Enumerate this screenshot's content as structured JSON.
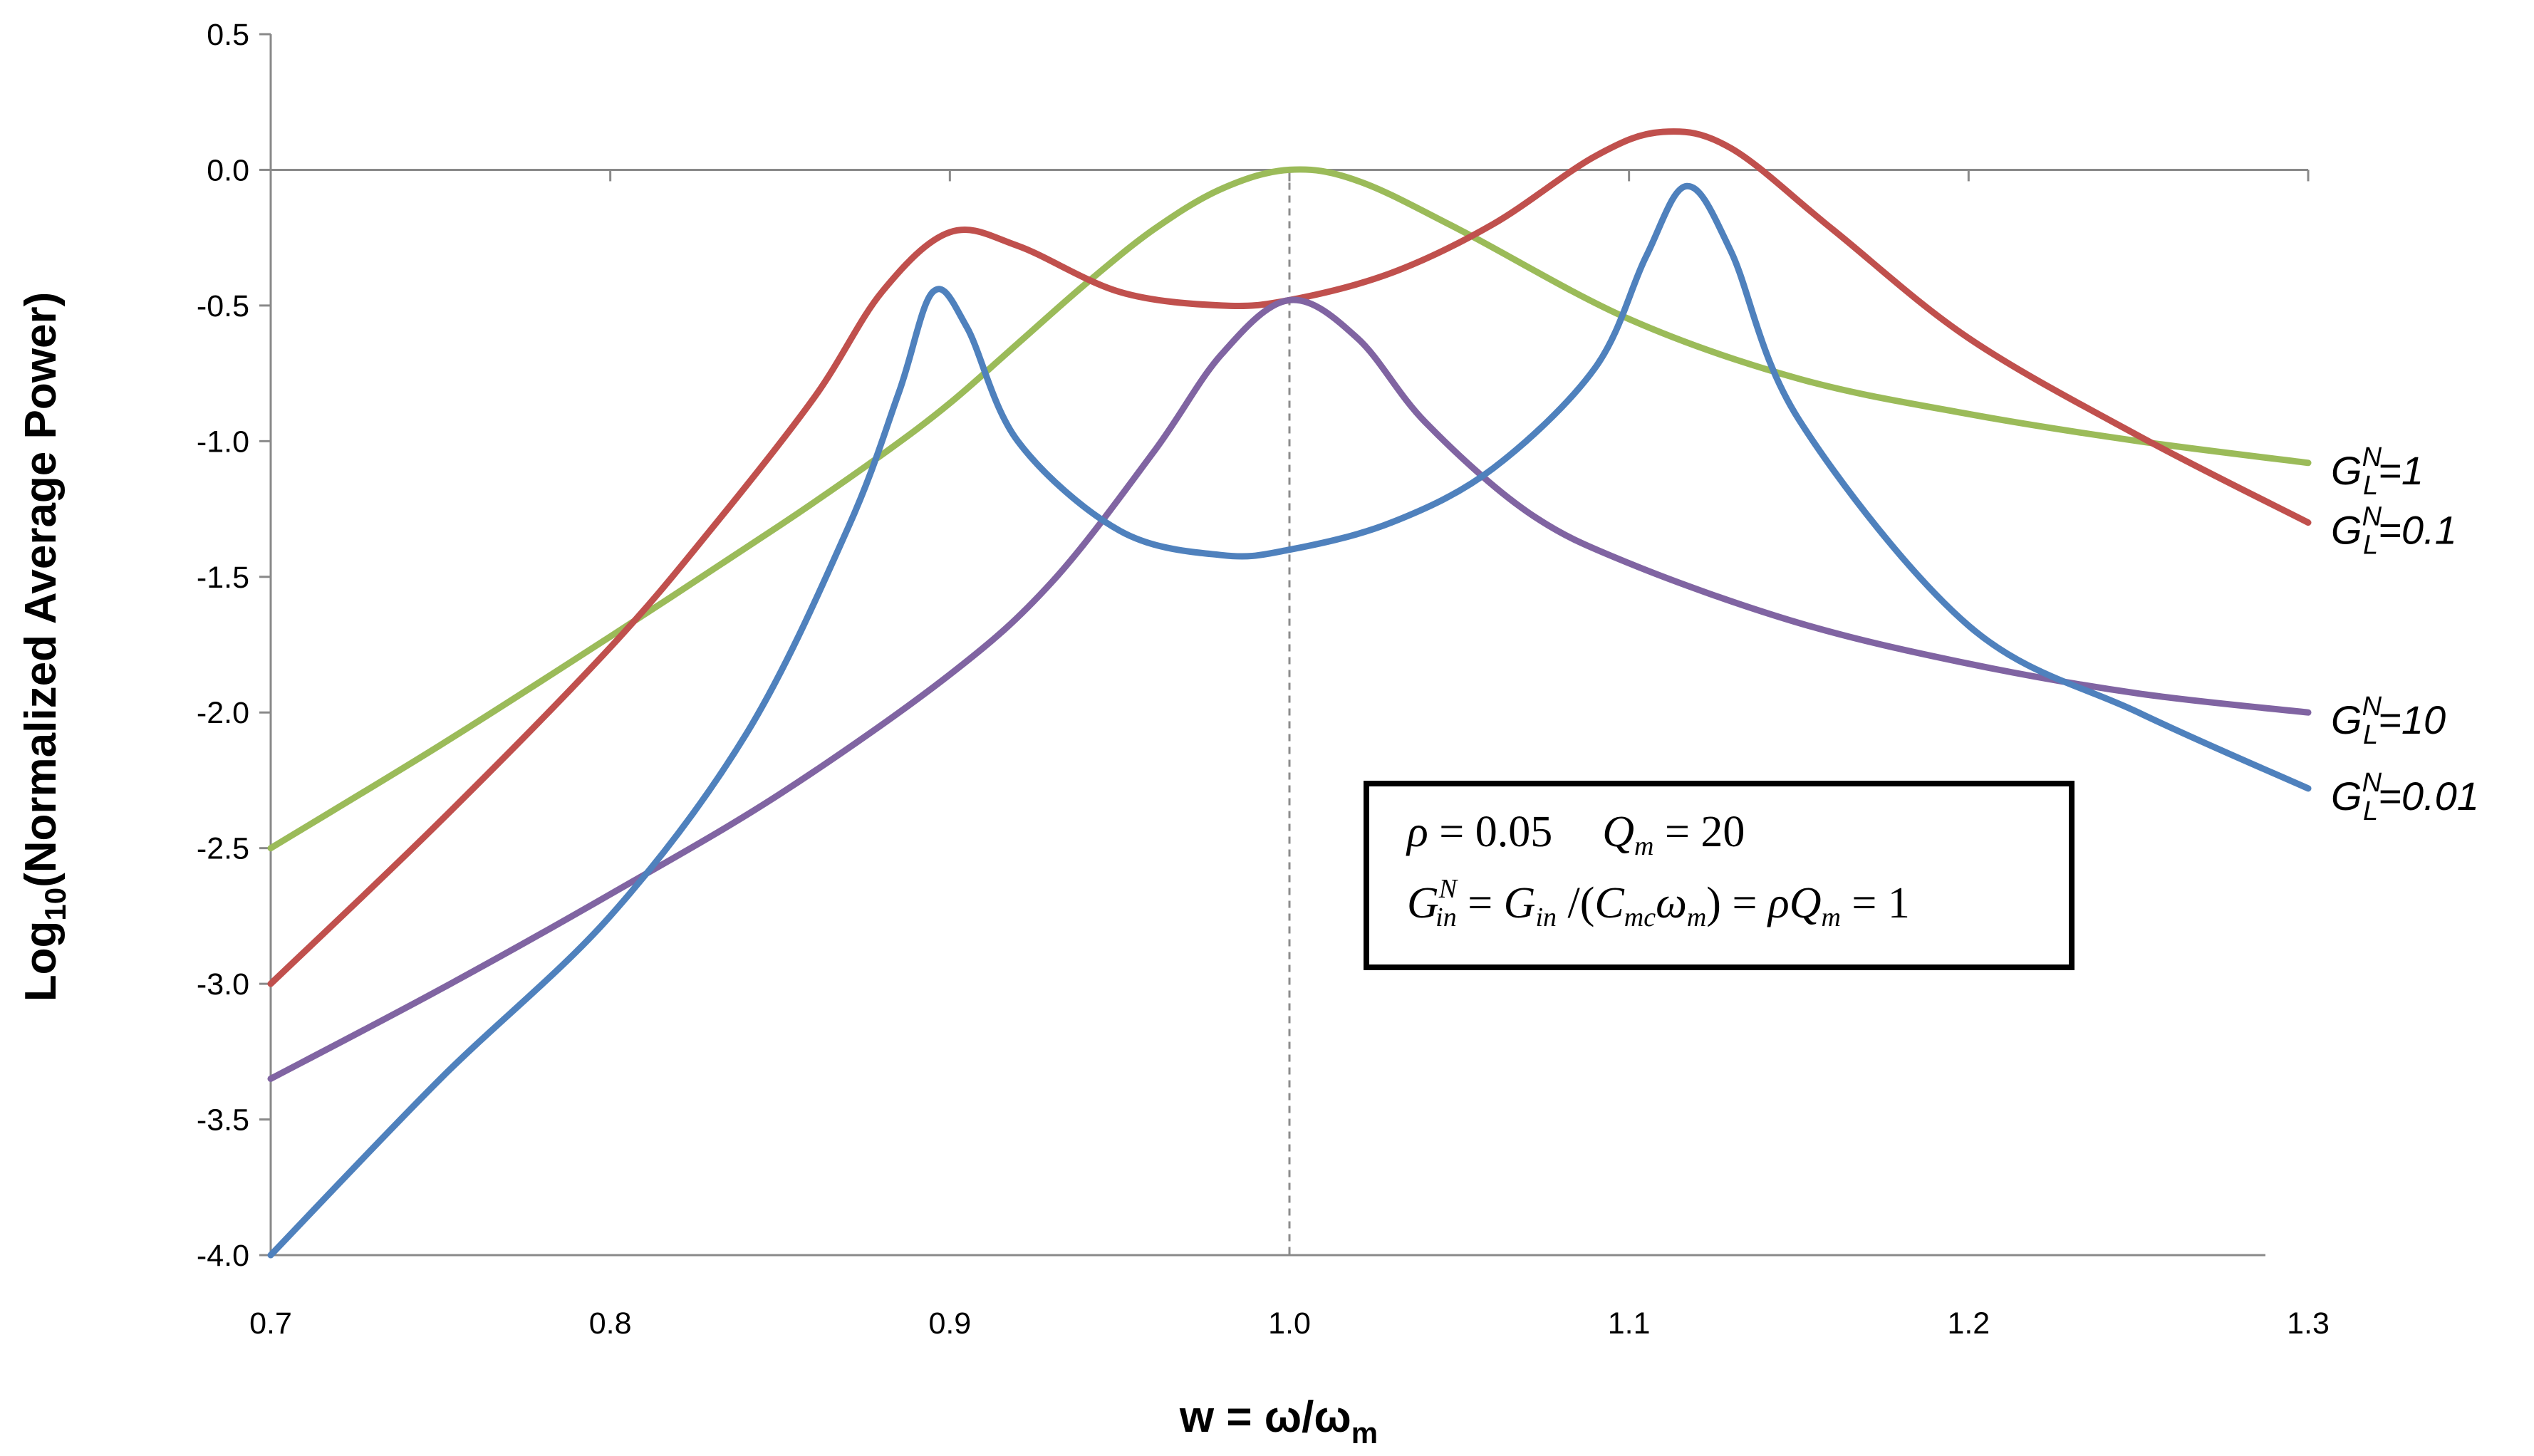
{
  "chart_data": {
    "type": "line",
    "title": "",
    "xlabel": {
      "main": "w = ω/ω",
      "sub": "m"
    },
    "ylabel": {
      "prefix": "Log",
      "sub": "10",
      "suffix": "(Normalized Average Power)"
    },
    "xlim": [
      0.7,
      1.3
    ],
    "ylim": [
      -4.0,
      0.5
    ],
    "x_ticks": [
      "0.7",
      "0.8",
      "0.9",
      "1.0",
      "1.1",
      "1.2",
      "1.3"
    ],
    "y_ticks": [
      "0.5",
      "0.0",
      "-0.5",
      "-1.0",
      "-1.5",
      "-2.0",
      "-2.5",
      "-3.0",
      "-3.5",
      "-4.0"
    ],
    "reference_line": {
      "x": 1.0,
      "style": "dashed"
    },
    "series": [
      {
        "name": "G_L^N=1",
        "label": {
          "base": "G",
          "sup": "N",
          "sub": "L",
          "value": "=1"
        },
        "color": "#9BBB59",
        "x": [
          0.7,
          0.75,
          0.8,
          0.85,
          0.88,
          0.9,
          0.92,
          0.94,
          0.96,
          0.98,
          1.0,
          1.02,
          1.05,
          1.1,
          1.15,
          1.2,
          1.25,
          1.3
        ],
        "y": [
          -2.5,
          -2.12,
          -1.72,
          -1.31,
          -1.05,
          -0.86,
          -0.64,
          -0.42,
          -0.22,
          -0.07,
          0.0,
          -0.04,
          -0.22,
          -0.55,
          -0.77,
          -0.9,
          -1.0,
          -1.08
        ]
      },
      {
        "name": "G_L^N=0.1",
        "label": {
          "base": "G",
          "sup": "N",
          "sub": "L",
          "value": "=0.1"
        },
        "color": "#C0504D",
        "x": [
          0.7,
          0.75,
          0.8,
          0.83,
          0.86,
          0.88,
          0.9,
          0.92,
          0.95,
          0.98,
          1.0,
          1.03,
          1.06,
          1.09,
          1.11,
          1.13,
          1.16,
          1.2,
          1.25,
          1.3
        ],
        "y": [
          -3.0,
          -2.4,
          -1.76,
          -1.32,
          -0.84,
          -0.45,
          -0.23,
          -0.28,
          -0.45,
          -0.5,
          -0.48,
          -0.38,
          -0.2,
          0.05,
          0.14,
          0.08,
          -0.22,
          -0.62,
          -0.98,
          -1.3
        ]
      },
      {
        "name": "G_L^N=10",
        "label": {
          "base": "G",
          "sup": "N",
          "sub": "L",
          "value": "=10"
        },
        "color": "#8064A2",
        "x": [
          0.7,
          0.75,
          0.8,
          0.85,
          0.9,
          0.93,
          0.96,
          0.98,
          1.0,
          1.02,
          1.04,
          1.07,
          1.1,
          1.15,
          1.2,
          1.25,
          1.3
        ],
        "y": [
          -3.35,
          -3.02,
          -2.67,
          -2.3,
          -1.86,
          -1.52,
          -1.04,
          -0.68,
          -0.48,
          -0.62,
          -0.93,
          -1.26,
          -1.45,
          -1.67,
          -1.82,
          -1.93,
          -2.0
        ]
      },
      {
        "name": "G_L^N=0.01",
        "label": {
          "base": "G",
          "sup": "N",
          "sub": "L",
          "value": "=0.01"
        },
        "color": "#4F81BD",
        "x": [
          0.7,
          0.75,
          0.8,
          0.84,
          0.87,
          0.885,
          0.895,
          0.905,
          0.92,
          0.95,
          0.98,
          1.0,
          1.03,
          1.06,
          1.09,
          1.105,
          1.117,
          1.13,
          1.15,
          1.2,
          1.25,
          1.3
        ],
        "y": [
          -4.0,
          -3.35,
          -2.75,
          -2.08,
          -1.32,
          -0.82,
          -0.45,
          -0.58,
          -1.0,
          -1.33,
          -1.42,
          -1.4,
          -1.3,
          -1.1,
          -0.73,
          -0.32,
          -0.06,
          -0.3,
          -0.92,
          -1.68,
          -2.0,
          -2.28
        ]
      }
    ],
    "annotation": {
      "line1": {
        "rho": "ρ",
        "eq1": " = 0.05",
        "Q": "Q",
        "Qsub": "m",
        "eq2": " = 20"
      },
      "line2": {
        "G": "G",
        "Gsup": "N",
        "Gsub": "in",
        "eq1": " = ",
        "G2": "G",
        "G2sub": "in",
        "div": " /(",
        "C": "C",
        "Csub": "mc",
        "omega": "ω",
        "omegasub": "m",
        "close": ") = ",
        "rho": "ρ",
        "Q": "Q",
        "Qsub": "m",
        "eq2": " = 1"
      }
    }
  }
}
